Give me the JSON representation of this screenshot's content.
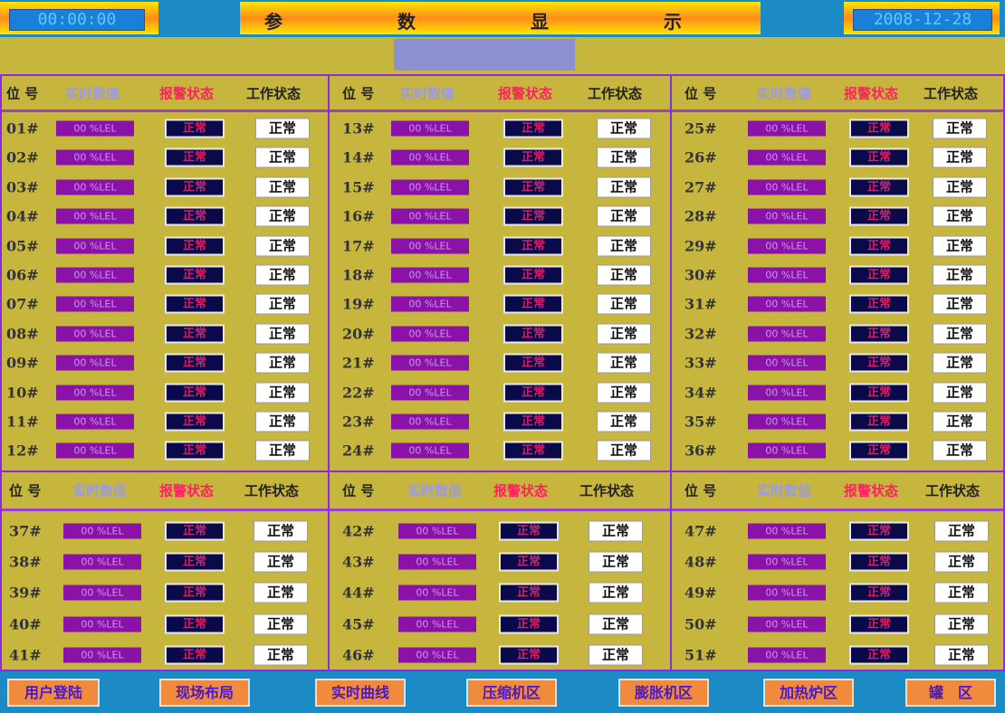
{
  "header": {
    "time": "00:00:00",
    "title": "参 数 显 示",
    "date": "2008-12-28"
  },
  "columns": {
    "id": "位 号",
    "value": "实时数值",
    "alarm": "报警状态",
    "work": "工作状态"
  },
  "colors": {
    "background": "#c6b63e",
    "bar": "#1c8ac4",
    "value_box": "#8a12a8",
    "alarm_box": "#0a0a4a",
    "alarm_text": "#d0206a",
    "border": "#8a2be2"
  },
  "panels": [
    {
      "rows": [
        {
          "id": "01#",
          "value": "00 %LEL",
          "alarm": "正常",
          "work": "正常"
        },
        {
          "id": "02#",
          "value": "00 %LEL",
          "alarm": "正常",
          "work": "正常"
        },
        {
          "id": "03#",
          "value": "00 %LEL",
          "alarm": "正常",
          "work": "正常"
        },
        {
          "id": "04#",
          "value": "00 %LEL",
          "alarm": "正常",
          "work": "正常"
        },
        {
          "id": "05#",
          "value": "00 %LEL",
          "alarm": "正常",
          "work": "正常"
        },
        {
          "id": "06#",
          "value": "00 %LEL",
          "alarm": "正常",
          "work": "正常"
        },
        {
          "id": "07#",
          "value": "00 %LEL",
          "alarm": "正常",
          "work": "正常"
        },
        {
          "id": "08#",
          "value": "00 %LEL",
          "alarm": "正常",
          "work": "正常"
        },
        {
          "id": "09#",
          "value": "00 %LEL",
          "alarm": "正常",
          "work": "正常"
        },
        {
          "id": "10#",
          "value": "00 %LEL",
          "alarm": "正常",
          "work": "正常"
        },
        {
          "id": "11#",
          "value": "00 %LEL",
          "alarm": "正常",
          "work": "正常"
        },
        {
          "id": "12#",
          "value": "00 %LEL",
          "alarm": "正常",
          "work": "正常"
        }
      ]
    },
    {
      "rows": [
        {
          "id": "13#",
          "value": "00 %LEL",
          "alarm": "正常",
          "work": "正常"
        },
        {
          "id": "14#",
          "value": "00 %LEL",
          "alarm": "正常",
          "work": "正常"
        },
        {
          "id": "15#",
          "value": "00 %LEL",
          "alarm": "正常",
          "work": "正常"
        },
        {
          "id": "16#",
          "value": "00 %LEL",
          "alarm": "正常",
          "work": "正常"
        },
        {
          "id": "17#",
          "value": "00 %LEL",
          "alarm": "正常",
          "work": "正常"
        },
        {
          "id": "18#",
          "value": "00 %LEL",
          "alarm": "正常",
          "work": "正常"
        },
        {
          "id": "19#",
          "value": "00 %LEL",
          "alarm": "正常",
          "work": "正常"
        },
        {
          "id": "20#",
          "value": "00 %LEL",
          "alarm": "正常",
          "work": "正常"
        },
        {
          "id": "21#",
          "value": "00 %LEL",
          "alarm": "正常",
          "work": "正常"
        },
        {
          "id": "22#",
          "value": "00 %LEL",
          "alarm": "正常",
          "work": "正常"
        },
        {
          "id": "23#",
          "value": "00 %LEL",
          "alarm": "正常",
          "work": "正常"
        },
        {
          "id": "24#",
          "value": "00 %LEL",
          "alarm": "正常",
          "work": "正常"
        }
      ]
    },
    {
      "rows": [
        {
          "id": "25#",
          "value": "00 %LEL",
          "alarm": "正常",
          "work": "正常"
        },
        {
          "id": "26#",
          "value": "00 %LEL",
          "alarm": "正常",
          "work": "正常"
        },
        {
          "id": "27#",
          "value": "00 %LEL",
          "alarm": "正常",
          "work": "正常"
        },
        {
          "id": "28#",
          "value": "00 %LEL",
          "alarm": "正常",
          "work": "正常"
        },
        {
          "id": "29#",
          "value": "00 %LEL",
          "alarm": "正常",
          "work": "正常"
        },
        {
          "id": "30#",
          "value": "00 %LEL",
          "alarm": "正常",
          "work": "正常"
        },
        {
          "id": "31#",
          "value": "00 %LEL",
          "alarm": "正常",
          "work": "正常"
        },
        {
          "id": "32#",
          "value": "00 %LEL",
          "alarm": "正常",
          "work": "正常"
        },
        {
          "id": "33#",
          "value": "00 %LEL",
          "alarm": "正常",
          "work": "正常"
        },
        {
          "id": "34#",
          "value": "00 %LEL",
          "alarm": "正常",
          "work": "正常"
        },
        {
          "id": "35#",
          "value": "00 %LEL",
          "alarm": "正常",
          "work": "正常"
        },
        {
          "id": "36#",
          "value": "00 %LEL",
          "alarm": "正常",
          "work": "正常"
        }
      ]
    },
    {
      "rows": [
        {
          "id": "37#",
          "value": "00 %LEL",
          "alarm": "正常",
          "work": "正常"
        },
        {
          "id": "38#",
          "value": "00 %LEL",
          "alarm": "正常",
          "work": "正常"
        },
        {
          "id": "39#",
          "value": "00 %LEL",
          "alarm": "正常",
          "work": "正常"
        },
        {
          "id": "40#",
          "value": "00 %LEL",
          "alarm": "正常",
          "work": "正常"
        },
        {
          "id": "41#",
          "value": "00 %LEL",
          "alarm": "正常",
          "work": "正常"
        }
      ]
    },
    {
      "rows": [
        {
          "id": "42#",
          "value": "00 %LEL",
          "alarm": "正常",
          "work": "正常"
        },
        {
          "id": "43#",
          "value": "00 %LEL",
          "alarm": "正常",
          "work": "正常"
        },
        {
          "id": "44#",
          "value": "00 %LEL",
          "alarm": "正常",
          "work": "正常"
        },
        {
          "id": "45#",
          "value": "00 %LEL",
          "alarm": "正常",
          "work": "正常"
        },
        {
          "id": "46#",
          "value": "00 %LEL",
          "alarm": "正常",
          "work": "正常"
        }
      ]
    },
    {
      "rows": [
        {
          "id": "47#",
          "value": "00 %LEL",
          "alarm": "正常",
          "work": "正常"
        },
        {
          "id": "48#",
          "value": "00 %LEL",
          "alarm": "正常",
          "work": "正常"
        },
        {
          "id": "49#",
          "value": "00 %LEL",
          "alarm": "正常",
          "work": "正常"
        },
        {
          "id": "50#",
          "value": "00 %LEL",
          "alarm": "正常",
          "work": "正常"
        },
        {
          "id": "51#",
          "value": "00 %LEL",
          "alarm": "正常",
          "work": "正常"
        }
      ]
    }
  ],
  "nav": [
    "用户登陆",
    "现场布局",
    "实时曲线",
    "压缩机区",
    "膨胀机区",
    "加热炉区",
    "罐　区"
  ]
}
